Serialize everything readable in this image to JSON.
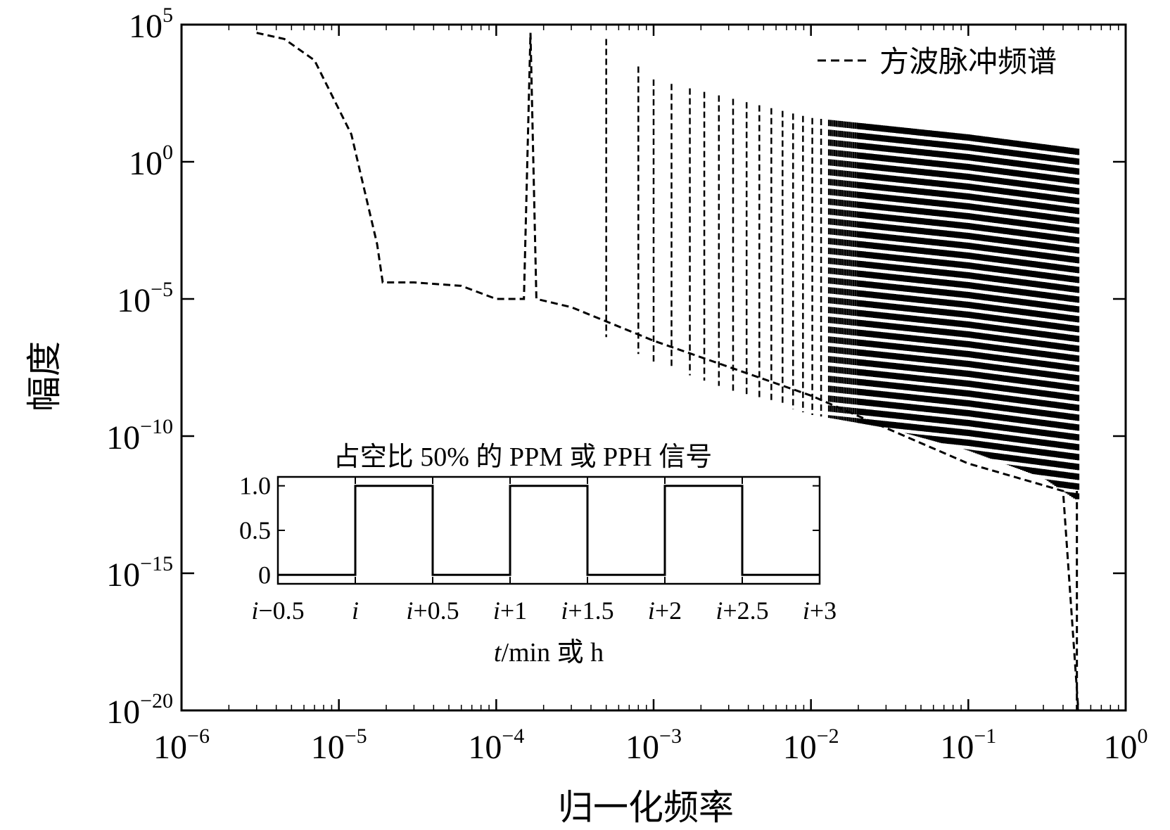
{
  "chart_data": {
    "type": "line",
    "xscale": "log",
    "yscale": "log",
    "xlim": [
      1e-06,
      1
    ],
    "ylim": [
      1e-20,
      100000.0
    ],
    "xlabel": "归一化频率",
    "ylabel": "幅度",
    "x_tick_labels": [
      {
        "base": "10",
        "exp": "−6"
      },
      {
        "base": "10",
        "exp": "−5"
      },
      {
        "base": "10",
        "exp": "−4"
      },
      {
        "base": "10",
        "exp": "−3"
      },
      {
        "base": "10",
        "exp": "−2"
      },
      {
        "base": "10",
        "exp": "−1"
      },
      {
        "base": "10",
        "exp": "0"
      }
    ],
    "y_tick_labels": [
      {
        "base": "10",
        "exp": "−20"
      },
      {
        "base": "10",
        "exp": "−15"
      },
      {
        "base": "10",
        "exp": "−10"
      },
      {
        "base": "10",
        "exp": "−5"
      },
      {
        "base": "10",
        "exp": "0"
      },
      {
        "base": "10",
        "exp": "5"
      }
    ],
    "legend": {
      "position": "top-right",
      "entries": [
        {
          "label": "方波脉冲频谱",
          "style": "dashed"
        }
      ]
    },
    "series": [
      {
        "name": "方波脉冲频谱",
        "style": "dashed",
        "envelope_points": [
          {
            "x": 3e-06,
            "y": 50000
          },
          {
            "x": 4.5e-06,
            "y": 30000
          },
          {
            "x": 7e-06,
            "y": 5000
          },
          {
            "x": 1.2e-05,
            "y": 10
          },
          {
            "x": 1.75e-05,
            "y": 0.001
          },
          {
            "x": 1.9e-05,
            "y": 4e-05
          },
          {
            "x": 3e-05,
            "y": 4e-05
          },
          {
            "x": 6e-05,
            "y": 3e-05
          },
          {
            "x": 0.0001,
            "y": 1e-05
          },
          {
            "x": 0.00015,
            "y": 1e-05
          },
          {
            "x": 0.000165,
            "y": 50000
          },
          {
            "x": 0.00018,
            "y": 1e-05
          },
          {
            "x": 0.0003,
            "y": 5e-06
          },
          {
            "x": 0.001,
            "y": 3e-07
          },
          {
            "x": 0.01,
            "y": 3e-09
          },
          {
            "x": 0.1,
            "y": 1e-11
          },
          {
            "x": 0.4,
            "y": 1e-12
          },
          {
            "x": 0.5,
            "y": 1e-20
          }
        ],
        "peak_upper_envelope": [
          {
            "x": 0.0005,
            "y": 30000
          },
          {
            "x": 0.001,
            "y": 1000
          },
          {
            "x": 0.01,
            "y": 40
          },
          {
            "x": 0.1,
            "y": 10
          },
          {
            "x": 0.5,
            "y": 3
          }
        ],
        "dense_region_start_x": 0.02,
        "end_x": 0.5
      }
    ],
    "inset": {
      "title": "占空比 50% 的 PPM 或 PPH 信号",
      "type": "line",
      "x_tick_labels": [
        "i−0.5",
        "i",
        "i+0.5",
        "i+1",
        "i+1.5",
        "i+2",
        "i+2.5",
        "i+3"
      ],
      "y_tick_labels": [
        "1.0",
        "0.5",
        "0"
      ],
      "xlim": [
        -0.5,
        3
      ],
      "ylim": [
        -0.1,
        1.1
      ],
      "xlabel": "t/min 或  h",
      "square_wave": [
        {
          "x": -0.5,
          "y": 0
        },
        {
          "x": 0,
          "y": 0
        },
        {
          "x": 0,
          "y": 1
        },
        {
          "x": 0.5,
          "y": 1
        },
        {
          "x": 0.5,
          "y": 0
        },
        {
          "x": 1,
          "y": 0
        },
        {
          "x": 1,
          "y": 1
        },
        {
          "x": 1.5,
          "y": 1
        },
        {
          "x": 1.5,
          "y": 0
        },
        {
          "x": 2,
          "y": 0
        },
        {
          "x": 2,
          "y": 1
        },
        {
          "x": 2.5,
          "y": 1
        },
        {
          "x": 2.5,
          "y": 0
        },
        {
          "x": 3,
          "y": 0
        }
      ]
    }
  }
}
